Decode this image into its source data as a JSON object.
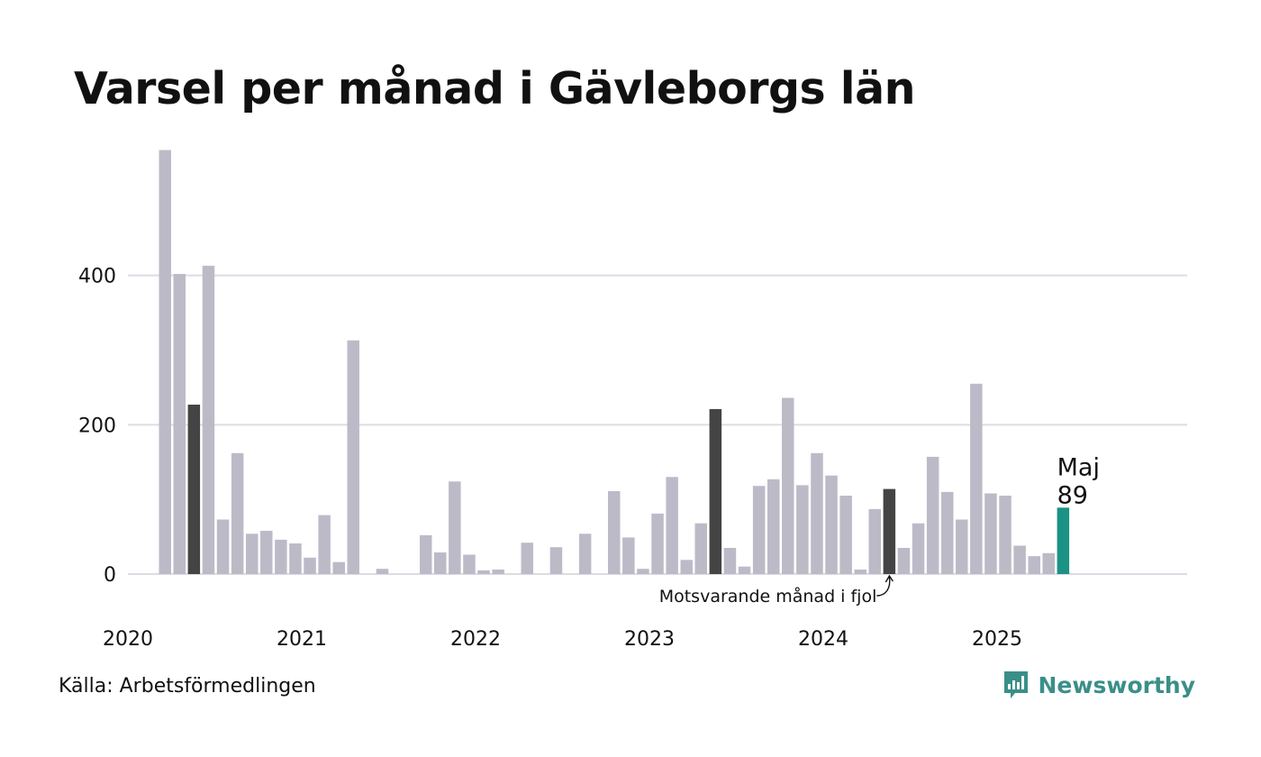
{
  "title": "Varsel per månad i Gävleborgs län",
  "source": "Källa: Arbetsförmedlingen",
  "brand": {
    "name": "Newsworthy",
    "icon": "newsworthy-logo-icon",
    "color": "#3a8f88"
  },
  "highlight_label": {
    "month": "Maj",
    "value": "89"
  },
  "annotation": "Motsvarande månad i fjol",
  "colors": {
    "bar": "#bdbac8",
    "same_month": "#444444",
    "current": "#1a9385",
    "grid": "#dddce4"
  },
  "chart_data": {
    "type": "bar",
    "title": "Varsel per månad i Gävleborgs län",
    "xlabel": "",
    "ylabel": "",
    "ylim": [
      0,
      580
    ],
    "yticks": [
      0,
      200,
      400
    ],
    "grid": true,
    "x_tick_labels": [
      "2020",
      "2021",
      "2022",
      "2023",
      "2024",
      "2025"
    ],
    "start": "2020-03",
    "end": "2025-12",
    "highlight_same_month": [
      "2020-05",
      "2023-05",
      "2024-05"
    ],
    "highlight_current": "2025-05",
    "months": [
      "2020-03",
      "2020-04",
      "2020-05",
      "2020-06",
      "2020-07",
      "2020-08",
      "2020-09",
      "2020-10",
      "2020-11",
      "2020-12",
      "2021-01",
      "2021-02",
      "2021-03",
      "2021-04",
      "2021-05",
      "2021-06",
      "2021-07",
      "2021-08",
      "2021-09",
      "2021-10",
      "2021-11",
      "2021-12",
      "2022-01",
      "2022-02",
      "2022-03",
      "2022-04",
      "2022-05",
      "2022-06",
      "2022-07",
      "2022-08",
      "2022-09",
      "2022-10",
      "2022-11",
      "2022-12",
      "2023-01",
      "2023-02",
      "2023-03",
      "2023-04",
      "2023-05",
      "2023-06",
      "2023-07",
      "2023-08",
      "2023-09",
      "2023-10",
      "2023-11",
      "2023-12",
      "2024-01",
      "2024-02",
      "2024-03",
      "2024-04",
      "2024-05",
      "2024-06",
      "2024-07",
      "2024-08",
      "2024-09",
      "2024-10",
      "2024-11",
      "2024-12",
      "2025-01",
      "2025-02",
      "2025-03",
      "2025-04",
      "2025-05"
    ],
    "values": [
      568,
      402,
      227,
      413,
      73,
      162,
      54,
      58,
      46,
      41,
      22,
      79,
      16,
      313,
      0,
      7,
      0,
      0,
      52,
      29,
      124,
      26,
      5,
      6,
      0,
      42,
      0,
      36,
      0,
      54,
      0,
      111,
      49,
      7,
      81,
      130,
      19,
      68,
      221,
      35,
      10,
      118,
      127,
      236,
      119,
      162,
      132,
      105,
      6,
      87,
      114,
      35,
      68,
      157,
      110,
      73,
      255,
      108,
      105,
      38,
      24,
      28,
      89
    ]
  }
}
